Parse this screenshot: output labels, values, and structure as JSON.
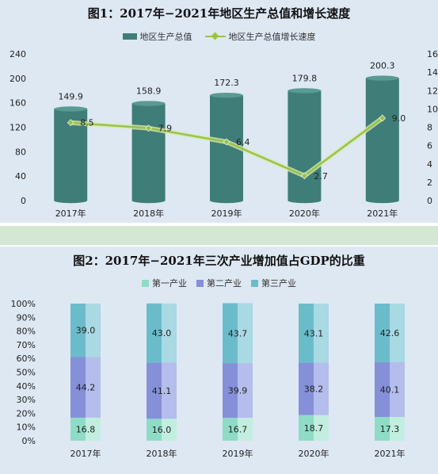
{
  "figure1": {
    "title": "图1：2017年−2021年地区生产总值和增长速度",
    "legend": {
      "bar_label": "地区生产总值",
      "line_label": "地区生产总值增长速度"
    },
    "colors": {
      "bar": "#3f7d78",
      "bar_top": "#5a9a94",
      "line": "#9bc24b",
      "line_glow": "#d7ebb0"
    }
  },
  "figure2": {
    "title": "图2：2017年−2021年三次产业增加值占GDP的比重",
    "legend": [
      "第一产业",
      "第二产业",
      "第三产业"
    ],
    "colors": [
      "#8fdcc6",
      "#8590d8",
      "#6bbccb"
    ],
    "light_colors": [
      "#c2eedf",
      "#b4bdec",
      "#a9d9e3"
    ]
  },
  "chart_data": [
    {
      "type": "bar",
      "title": "图1：2017年−2021年地区生产总值和增长速度",
      "categories": [
        "2017年",
        "2018年",
        "2019年",
        "2020年",
        "2021年"
      ],
      "y_ticks": [
        "0",
        "40",
        "80",
        "120",
        "160",
        "200",
        "240"
      ],
      "y2_ticks": [
        "0",
        "2",
        "4",
        "6",
        "8",
        "10",
        "12",
        "14",
        "16"
      ],
      "ylim": [
        0,
        240
      ],
      "y2lim": [
        0,
        16
      ],
      "series": [
        {
          "name": "地区生产总值",
          "type": "bar",
          "values": [
            149.9,
            158.9,
            172.3,
            179.8,
            200.3
          ],
          "labels": [
            "149.9",
            "158.9",
            "172.3",
            "179.8",
            "200.3"
          ]
        },
        {
          "name": "地区生产总值增长速度",
          "type": "line",
          "axis": "right",
          "values": [
            8.5,
            7.9,
            6.4,
            2.7,
            9.0
          ],
          "labels": [
            "8.5",
            "7.9",
            "6.4",
            "2.7",
            "9.0"
          ]
        }
      ]
    },
    {
      "type": "bar",
      "stacked": true,
      "title": "图2：2017年−2021年三次产业增加值占GDP的比重",
      "categories": [
        "2017年",
        "2018年",
        "2019年",
        "2020年",
        "2021年"
      ],
      "y_ticks": [
        "0%",
        "10%",
        "20%",
        "30%",
        "40%",
        "50%",
        "60%",
        "70%",
        "80%",
        "90%",
        "100%"
      ],
      "ylim": [
        0,
        100
      ],
      "series": [
        {
          "name": "第一产业",
          "values": [
            16.8,
            16.0,
            16.7,
            18.7,
            17.3
          ],
          "labels": [
            "16.8",
            "16.0",
            "16.7",
            "18.7",
            "17.3"
          ]
        },
        {
          "name": "第二产业",
          "values": [
            44.2,
            41.1,
            39.9,
            38.2,
            40.1
          ],
          "labels": [
            "44.2",
            "41.1",
            "39.9",
            "38.2",
            "40.1"
          ]
        },
        {
          "name": "第三产业",
          "values": [
            39.0,
            43.0,
            43.7,
            43.1,
            42.6
          ],
          "labels": [
            "39.0",
            "43.0",
            "43.7",
            "43.1",
            "42.6"
          ]
        }
      ]
    }
  ]
}
